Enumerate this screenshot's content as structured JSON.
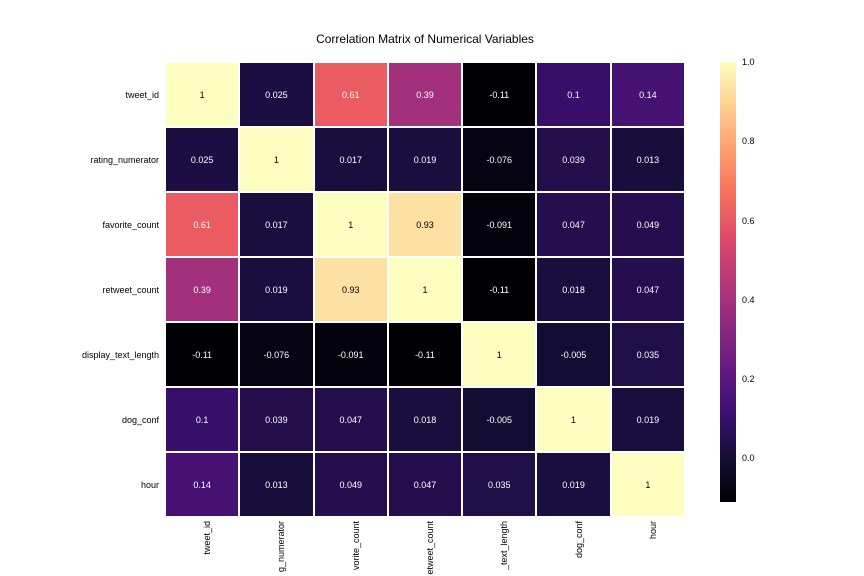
{
  "title": "Correlation Matrix of Numerical Variables",
  "labels": [
    "tweet_id",
    "rating_numerator",
    "favorite_count",
    "retweet_count",
    "display_text_length",
    "dog_conf",
    "hour"
  ],
  "xlabels_truncated": [
    "tweet_id",
    "g_numerator",
    "vorite_count",
    "etweet_count",
    "_text_length",
    "dog_conf",
    "hour"
  ],
  "matrix": [
    [
      1,
      0.025,
      0.61,
      0.39,
      -0.11,
      0.1,
      0.14
    ],
    [
      0.025,
      1,
      0.017,
      0.019,
      -0.076,
      0.039,
      0.013
    ],
    [
      0.61,
      0.017,
      1,
      0.93,
      -0.091,
      0.047,
      0.049
    ],
    [
      0.39,
      0.019,
      0.93,
      1,
      -0.11,
      0.018,
      0.047
    ],
    [
      -0.11,
      -0.076,
      -0.091,
      -0.11,
      1,
      -0.005,
      0.035
    ],
    [
      0.1,
      0.039,
      0.047,
      0.018,
      -0.005,
      1,
      0.019
    ],
    [
      0.14,
      0.013,
      0.049,
      0.047,
      0.035,
      0.019,
      1
    ]
  ],
  "annot_text": [
    [
      "1",
      "0.025",
      "0.61",
      "0.39",
      "-0.11",
      "0.1",
      "0.14"
    ],
    [
      "0.025",
      "1",
      "0.017",
      "0.019",
      "-0.076",
      "0.039",
      "0.013"
    ],
    [
      "0.61",
      "0.017",
      "1",
      "0.93",
      "-0.091",
      "0.047",
      "0.049"
    ],
    [
      "0.39",
      "0.019",
      "0.93",
      "1",
      "-0.11",
      "0.018",
      "0.047"
    ],
    [
      "-0.11",
      "-0.076",
      "-0.091",
      "-0.11",
      "1",
      "-0.005",
      "0.035"
    ],
    [
      "0.1",
      "0.039",
      "0.047",
      "0.018",
      "-0.005",
      "1",
      "0.019"
    ],
    [
      "0.14",
      "0.013",
      "0.049",
      "0.047",
      "0.035",
      "0.019",
      "1"
    ]
  ],
  "colormap": {
    "name": "magma",
    "vmin": -0.11,
    "vmax": 1.0,
    "stops": [
      {
        "t": 0.0,
        "color": "#000004"
      },
      {
        "t": 0.1,
        "color": "#140e36"
      },
      {
        "t": 0.2,
        "color": "#3b0f70"
      },
      {
        "t": 0.3,
        "color": "#641a80"
      },
      {
        "t": 0.4,
        "color": "#8c2981"
      },
      {
        "t": 0.5,
        "color": "#b73779"
      },
      {
        "t": 0.6,
        "color": "#de4968"
      },
      {
        "t": 0.7,
        "color": "#f7705c"
      },
      {
        "t": 0.8,
        "color": "#fe9f6d"
      },
      {
        "t": 0.9,
        "color": "#fecf92"
      },
      {
        "t": 1.0,
        "color": "#fcfdbf"
      }
    ]
  },
  "text_light": "#ffffff",
  "text_dark": "#000000",
  "text_light_threshold": 0.7,
  "colorbar_ticks": [
    {
      "value": 0.0,
      "label": "0.0"
    },
    {
      "value": 0.2,
      "label": "0.2"
    },
    {
      "value": 0.4,
      "label": "0.4"
    },
    {
      "value": 0.6,
      "label": "0.6"
    },
    {
      "value": 0.8,
      "label": "0.8"
    },
    {
      "value": 1.0,
      "label": "1.0"
    }
  ],
  "background": "#ffffff",
  "grid_linecolor": "#ffffff",
  "fontsize": 9,
  "title_fontsize": 12
}
